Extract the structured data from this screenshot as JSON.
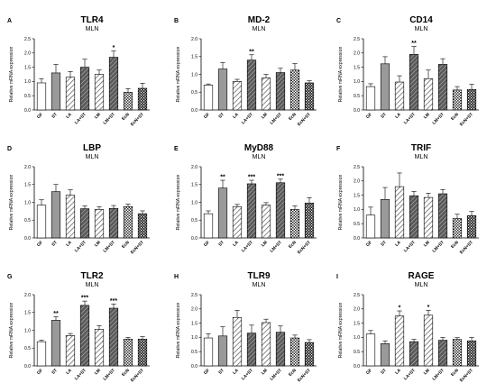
{
  "figure": {
    "ylabel": "Relative mRNA expression",
    "categories": [
      "GF",
      "ST",
      "LA",
      "LA+ST",
      "LM",
      "LM+ST",
      "EcN",
      "EcN+ST"
    ],
    "patterns": [
      "white",
      "gray",
      "hatch-light",
      "hatch-dark",
      "hatch-light",
      "hatch-dark",
      "checker",
      "checker-dark"
    ]
  },
  "chart_data": [
    {
      "type": "bar",
      "letter": "A",
      "title": "TLR4",
      "subtitle": "MLN",
      "ylim": [
        0,
        2.5
      ],
      "yticks": [
        "0.0",
        "0.5",
        "1.0",
        "1.5",
        "2.0",
        "2.5"
      ],
      "categories": [
        "GF",
        "ST",
        "LA",
        "LA+ST",
        "LM",
        "LM+ST",
        "EcN",
        "EcN+ST"
      ],
      "values": [
        0.95,
        1.3,
        1.15,
        1.5,
        1.25,
        1.85,
        0.62,
        0.76
      ],
      "errors": [
        0.15,
        0.3,
        0.2,
        0.28,
        0.15,
        0.22,
        0.13,
        0.18
      ],
      "significance": [
        "",
        "",
        "",
        "",
        "",
        "*",
        "",
        ""
      ]
    },
    {
      "type": "bar",
      "letter": "B",
      "title": "MD-2",
      "subtitle": "MLN",
      "ylim": [
        0,
        2.0
      ],
      "yticks": [
        "0.0",
        "0.5",
        "1.0",
        "1.5",
        "2.0"
      ],
      "categories": [
        "GF",
        "ST",
        "LA",
        "LA+ST",
        "LM",
        "LM+ST",
        "EcN",
        "EcN+ST"
      ],
      "values": [
        0.7,
        1.15,
        0.8,
        1.4,
        0.9,
        1.05,
        1.12,
        0.76
      ],
      "errors": [
        0.03,
        0.18,
        0.06,
        0.15,
        0.1,
        0.12,
        0.18,
        0.06
      ],
      "significance": [
        "",
        "",
        "",
        "**",
        "",
        "",
        "",
        ""
      ]
    },
    {
      "type": "bar",
      "letter": "C",
      "title": "CD14",
      "subtitle": "MLN",
      "ylim": [
        0,
        2.5
      ],
      "yticks": [
        "0.0",
        "0.5",
        "1.0",
        "1.5",
        "2.0",
        "2.5"
      ],
      "categories": [
        "GF",
        "ST",
        "LA",
        "LA+ST",
        "LM",
        "LM+ST",
        "EcN",
        "EcN+ST"
      ],
      "values": [
        0.82,
        1.62,
        0.98,
        1.95,
        1.1,
        1.6,
        0.7,
        0.72
      ],
      "errors": [
        0.1,
        0.25,
        0.22,
        0.28,
        0.3,
        0.2,
        0.12,
        0.18
      ],
      "significance": [
        "",
        "",
        "",
        "**",
        "",
        "",
        "",
        ""
      ]
    },
    {
      "type": "bar",
      "letter": "D",
      "title": "LBP",
      "subtitle": "MLN",
      "ylim": [
        0,
        2.0
      ],
      "yticks": [
        "0.0",
        "0.5",
        "1.0",
        "1.5",
        "2.0"
      ],
      "categories": [
        "GF",
        "ST",
        "LA",
        "LA+ST",
        "LM",
        "LM+ST",
        "EcN",
        "EcN+ST"
      ],
      "values": [
        0.92,
        1.3,
        1.2,
        0.82,
        0.8,
        0.83,
        0.88,
        0.68
      ],
      "errors": [
        0.15,
        0.2,
        0.15,
        0.08,
        0.08,
        0.08,
        0.07,
        0.08
      ],
      "significance": [
        "",
        "",
        "",
        "",
        "",
        "",
        "",
        ""
      ]
    },
    {
      "type": "bar",
      "letter": "E",
      "title": "MyD88",
      "subtitle": "MLN",
      "ylim": [
        0,
        2.0
      ],
      "yticks": [
        "0.0",
        "0.5",
        "1.0",
        "1.5",
        "2.0"
      ],
      "categories": [
        "GF",
        "ST",
        "LA",
        "LA+ST",
        "LM",
        "LM+ST",
        "EcN",
        "EcN+ST"
      ],
      "values": [
        0.68,
        1.4,
        0.88,
        1.52,
        0.92,
        1.55,
        0.8,
        0.98
      ],
      "errors": [
        0.08,
        0.22,
        0.06,
        0.1,
        0.07,
        0.1,
        0.1,
        0.15
      ],
      "significance": [
        "",
        "**",
        "",
        "***",
        "",
        "***",
        "",
        ""
      ]
    },
    {
      "type": "bar",
      "letter": "F",
      "title": "TRIF",
      "subtitle": "MLN",
      "ylim": [
        0,
        2.5
      ],
      "yticks": [
        "0.0",
        "0.5",
        "1.0",
        "1.5",
        "2.0",
        "2.5"
      ],
      "categories": [
        "GF",
        "ST",
        "LA",
        "LA+ST",
        "LM",
        "LM+ST",
        "EcN",
        "EcN+ST"
      ],
      "values": [
        0.8,
        1.35,
        1.8,
        1.48,
        1.42,
        1.55,
        0.68,
        0.78
      ],
      "errors": [
        0.28,
        0.42,
        0.48,
        0.15,
        0.15,
        0.15,
        0.15,
        0.15
      ],
      "significance": [
        "",
        "",
        "",
        "",
        "",
        "",
        "",
        ""
      ]
    },
    {
      "type": "bar",
      "letter": "G",
      "title": "TLR2",
      "subtitle": "MLN",
      "ylim": [
        0,
        2.0
      ],
      "yticks": [
        "0.0",
        "0.5",
        "1.0",
        "1.5",
        "2.0"
      ],
      "categories": [
        "GF",
        "ST",
        "LA",
        "LA+ST",
        "LM",
        "LM+ST",
        "EcN",
        "EcN+ST"
      ],
      "values": [
        0.68,
        1.28,
        0.85,
        1.7,
        1.03,
        1.62,
        0.75,
        0.75
      ],
      "errors": [
        0.04,
        0.1,
        0.06,
        0.12,
        0.1,
        0.12,
        0.05,
        0.07
      ],
      "significance": [
        "",
        "**",
        "",
        "***",
        "",
        "***",
        "",
        ""
      ]
    },
    {
      "type": "bar",
      "letter": "H",
      "title": "TLR9",
      "subtitle": "MLN",
      "ylim": [
        0,
        2.5
      ],
      "yticks": [
        "0.0",
        "0.5",
        "1.0",
        "1.5",
        "2.0",
        "2.5"
      ],
      "categories": [
        "GF",
        "ST",
        "LA",
        "LA+ST",
        "LM",
        "LM+ST",
        "EcN",
        "EcN+ST"
      ],
      "values": [
        0.98,
        1.05,
        1.7,
        1.15,
        1.52,
        1.18,
        0.98,
        0.82
      ],
      "errors": [
        0.15,
        0.32,
        0.25,
        0.28,
        0.12,
        0.22,
        0.1,
        0.1
      ],
      "significance": [
        "",
        "",
        "",
        "",
        "",
        "",
        "",
        ""
      ]
    },
    {
      "type": "bar",
      "letter": "I",
      "title": "RAGE",
      "subtitle": "MLN",
      "ylim": [
        0,
        2.5
      ],
      "yticks": [
        "0.0",
        "0.5",
        "1.0",
        "1.5",
        "2.0",
        "2.5"
      ],
      "categories": [
        "GF",
        "ST",
        "LA",
        "LA+ST",
        "LM",
        "LM+ST",
        "EcN",
        "EcN+ST"
      ],
      "values": [
        1.12,
        0.78,
        1.75,
        0.85,
        1.78,
        0.9,
        0.93,
        0.88
      ],
      "errors": [
        0.12,
        0.1,
        0.18,
        0.08,
        0.17,
        0.1,
        0.06,
        0.12
      ],
      "significance": [
        "",
        "",
        "*",
        "",
        "*",
        "",
        "",
        ""
      ]
    }
  ]
}
